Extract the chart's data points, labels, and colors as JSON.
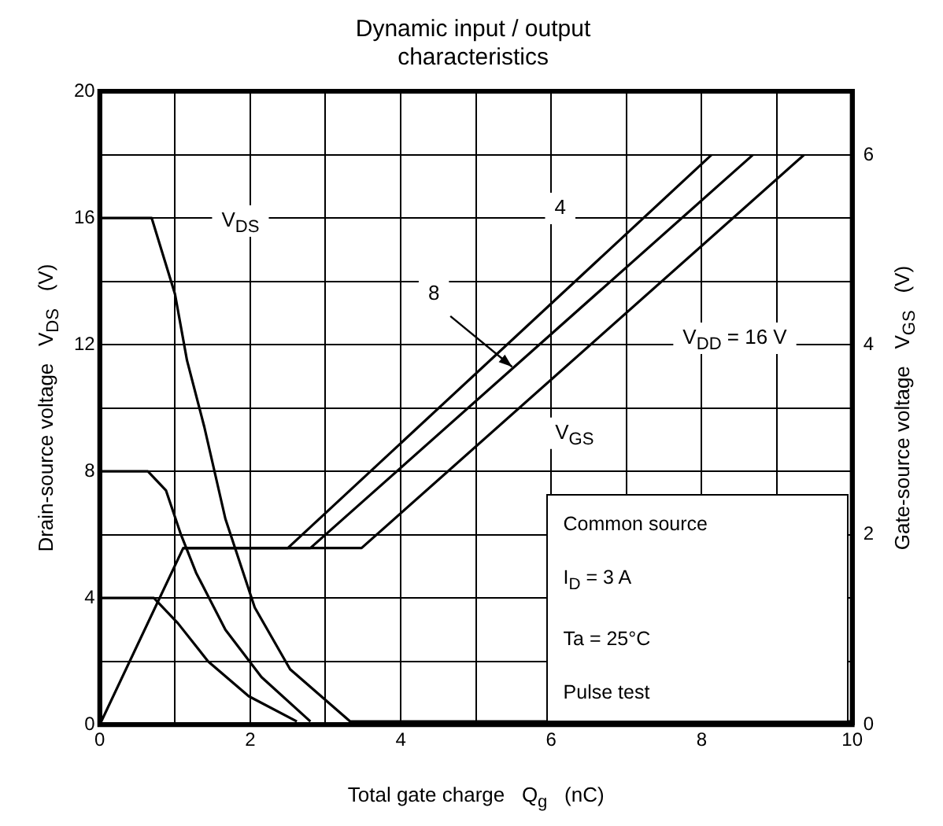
{
  "chart_data": {
    "type": "line",
    "title": "Dynamic input / output characteristics",
    "xlabel": "Total gate charge   Q$_{g}$   (nC)",
    "ylabel": "Drain-source voltage   V$_{DS}$   (V)",
    "y2label": "Gate-source voltage   V$_{GS}$   (V)",
    "xlim": [
      0,
      10
    ],
    "xticks": [
      0,
      {
        "value": 1,
        "label": null
      },
      2,
      {
        "value": 3,
        "label": null
      },
      4,
      {
        "value": 5,
        "label": null
      },
      6,
      {
        "value": 7,
        "label": null
      },
      8,
      {
        "value": 9,
        "label": null
      },
      10
    ],
    "ylim": [
      0,
      20
    ],
    "yticks": [
      0,
      {
        "value": 2,
        "label": null
      },
      4,
      {
        "value": 6,
        "label": null
      },
      8,
      {
        "value": 10,
        "label": null
      },
      12,
      {
        "value": 14,
        "label": null
      },
      16,
      {
        "value": 18,
        "label": null
      },
      20
    ],
    "y2lim": [
      0,
      6.67
    ],
    "y2ticks": [
      0,
      2,
      4,
      6
    ],
    "grid": true,
    "legend": false,
    "marker": "none",
    "line_style": "solid",
    "series": [
      {
        "color": "#000000",
        "x": [
          0,
          0.69,
          1.0,
          1.16,
          1.39,
          1.67,
          2.06,
          2.53,
          3.33,
          10
        ],
        "values": [
          16,
          16,
          13.6,
          11.5,
          9.4,
          6.5,
          3.7,
          1.75,
          0.1,
          0.1
        ]
      },
      {
        "color": "#000000",
        "x": [
          0,
          0.64,
          0.88,
          1.08,
          1.28,
          1.67,
          2.15,
          2.8
        ],
        "values": [
          8,
          8,
          7.4,
          6.0,
          4.8,
          3.0,
          1.5,
          0.1
        ]
      },
      {
        "color": "#000000",
        "x": [
          0,
          0.72,
          1.04,
          1.44,
          1.98,
          2.62
        ],
        "values": [
          4,
          4,
          3.2,
          2.0,
          0.9,
          0.1
        ]
      },
      {
        "color": "#000000",
        "axis": "y2",
        "x": [
          0,
          1.11,
          2.5,
          8.13
        ],
        "values": [
          0,
          1.86,
          1.86,
          6.0
        ]
      },
      {
        "color": "#000000",
        "axis": "y2",
        "x": [
          1.11,
          2.8,
          8.68
        ],
        "values": [
          1.86,
          1.86,
          6.0
        ]
      },
      {
        "color": "#000000",
        "axis": "y2",
        "x": [
          1.11,
          3.48,
          9.36
        ],
        "values": [
          1.86,
          1.86,
          6.0
        ]
      }
    ],
    "annotations": [
      {
        "text": "V$_{DS}$",
        "x": 1.87,
        "y": 15.9
      },
      {
        "text": "4",
        "x": 6.12,
        "y": 16.3
      },
      {
        "text": "8",
        "x": 4.44,
        "y": 13.6
      },
      "V$_{DD}$ = 16 V",
      {
        "text": "V$_{GS}$",
        "x": 6.31,
        "y": 9.2
      },
      "Common source",
      "I$_{D}$ = 3 A",
      "Ta = 25°C",
      "Pulse test"
    ]
  }
}
